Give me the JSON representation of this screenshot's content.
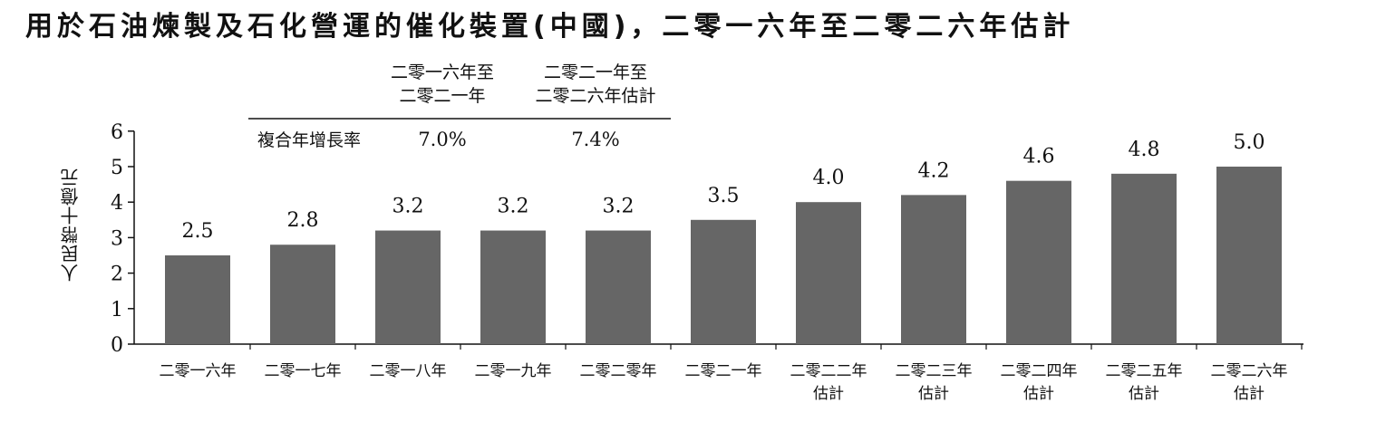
{
  "chart_data": {
    "type": "bar",
    "title": "用於石油煉製及石化營運的催化裝置(中國)，二零一六年至二零二六年估計",
    "ylabel": "人民幣十億元",
    "ylim": [
      0,
      6
    ],
    "yticks": [
      0,
      1,
      2,
      3,
      4,
      5,
      6
    ],
    "grid": false,
    "bar_color": "#666666",
    "categories": [
      [
        "二零一六年"
      ],
      [
        "二零一七年"
      ],
      [
        "二零一八年"
      ],
      [
        "二零一九年"
      ],
      [
        "二零二零年"
      ],
      [
        "二零二一年"
      ],
      [
        "二零二二年",
        "估計"
      ],
      [
        "二零二三年",
        "估計"
      ],
      [
        "二零二四年",
        "估計"
      ],
      [
        "二零二五年",
        "估計"
      ],
      [
        "二零二六年",
        "估計"
      ]
    ],
    "values": [
      2.5,
      2.8,
      3.2,
      3.2,
      3.2,
      3.5,
      4.0,
      4.2,
      4.6,
      4.8,
      5.0
    ],
    "value_labels": [
      "2.5",
      "2.8",
      "3.2",
      "3.2",
      "3.2",
      "3.5",
      "4.0",
      "4.2",
      "4.6",
      "4.8",
      "5.0"
    ],
    "cagr_table": {
      "period_headers": [
        [
          "二零一六年至",
          "二零二一年"
        ],
        [
          "二零二一年至",
          "二零二六年估計"
        ]
      ],
      "row_label": "複合年增長率",
      "values": [
        "7.0%",
        "7.4%"
      ]
    }
  }
}
